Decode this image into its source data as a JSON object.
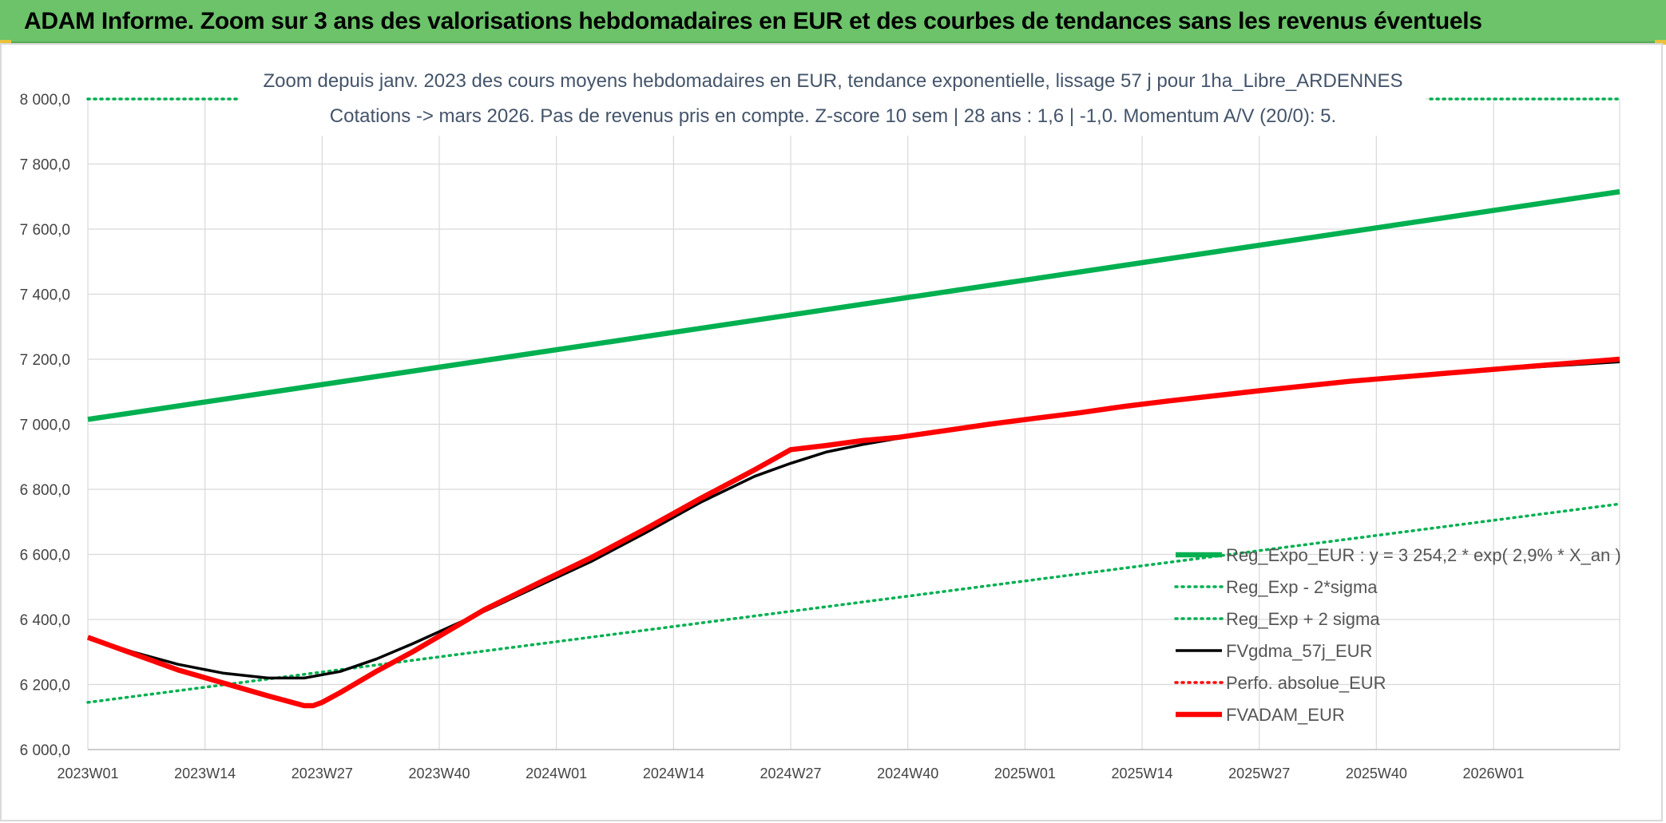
{
  "header": {
    "title": "ADAM Informe. Zoom sur 3 ans des valorisations hebdomadaires en EUR et des courbes de tendances sans les revenus éventuels"
  },
  "chart_data": {
    "type": "line",
    "title": "Zoom depuis janv. 2023 des cours moyens hebdomadaires en EUR, tendance exponentielle, lissage 57 j pour 1ha_Libre_ARDENNES",
    "subtitle": "Cotations -> mars 2026. Pas de revenus pris en compte. Z-score 10 sem | 28 ans : 1,6 | -1,0. Momentum A/V (20/0): 5.",
    "ylim": [
      6000,
      8000
    ],
    "yticks": [
      6000,
      6200,
      6400,
      6600,
      6800,
      7000,
      7200,
      7400,
      7600,
      7800,
      8000
    ],
    "ytick_labels": [
      "6 000,0",
      "6 200,0",
      "6 400,0",
      "6 600,0",
      "6 800,0",
      "7 000,0",
      "7 200,0",
      "7 400,0",
      "7 600,0",
      "7 800,0",
      "8 000,0"
    ],
    "xlim": [
      0,
      170
    ],
    "xticks": [
      0,
      13,
      26,
      39,
      52,
      65,
      78,
      91,
      104,
      117,
      130,
      143,
      156
    ],
    "xtick_labels": [
      "2023W01",
      "2023W14",
      "2023W27",
      "2023W40",
      "2024W01",
      "2024W14",
      "2024W27",
      "2024W40",
      "2025W01",
      "2025W14",
      "2025W27",
      "2025W40",
      "2026W01"
    ],
    "grid": true,
    "legend_position": "bottom-right",
    "series": [
      {
        "name": "Reg_Expo_EUR : y = 3 254,2 * exp( 2,9% *  X_an )",
        "color": "#00b050",
        "style": "thick",
        "x": [
          0,
          170
        ],
        "values": [
          7015,
          7715
        ]
      },
      {
        "name": "Reg_Exp - 2*sigma",
        "color": "#00b050",
        "style": "dotted",
        "x": [
          0,
          170
        ],
        "values": [
          6145,
          6755
        ]
      },
      {
        "name": "Reg_Exp + 2 sigma",
        "color": "#00b050",
        "style": "dotted",
        "x": [
          0,
          17,
          149,
          170
        ],
        "values": [
          8000,
          8000,
          8000,
          8000
        ],
        "gap_after_index": 1
      },
      {
        "name": "FVgdma_57j_EUR",
        "color": "#000000",
        "style": "solid",
        "x": [
          0,
          5,
          10,
          15,
          20,
          24,
          28,
          32,
          36,
          40,
          44,
          50,
          56,
          62,
          68,
          74,
          78,
          82,
          86,
          90,
          95,
          100,
          105,
          110,
          115,
          120,
          130,
          140,
          150,
          160,
          170
        ],
        "values": [
          6345,
          6300,
          6262,
          6235,
          6220,
          6220,
          6240,
          6278,
          6325,
          6375,
          6425,
          6503,
          6580,
          6668,
          6760,
          6840,
          6880,
          6915,
          6938,
          6957,
          6980,
          7000,
          7018,
          7035,
          7052,
          7070,
          7100,
          7130,
          7155,
          7175,
          7192
        ]
      },
      {
        "name": "Perfo. absolue_EUR",
        "color": "#ff0000",
        "style": "dotted",
        "x": [],
        "values": []
      },
      {
        "name": "FVADAM_EUR",
        "color": "#ff0000",
        "style": "thick",
        "x": [
          0,
          5,
          10,
          15,
          20,
          24,
          25,
          26,
          28,
          32,
          36,
          40,
          44,
          50,
          56,
          62,
          68,
          74,
          78,
          82,
          86,
          90,
          95,
          100,
          105,
          110,
          115,
          120,
          130,
          140,
          150,
          160,
          170
        ],
        "values": [
          6345,
          6295,
          6245,
          6205,
          6165,
          6135,
          6135,
          6145,
          6175,
          6240,
          6300,
          6365,
          6430,
          6512,
          6592,
          6680,
          6772,
          6860,
          6922,
          6935,
          6950,
          6960,
          6980,
          7000,
          7018,
          7035,
          7055,
          7072,
          7103,
          7132,
          7155,
          7178,
          7200
        ]
      }
    ]
  }
}
